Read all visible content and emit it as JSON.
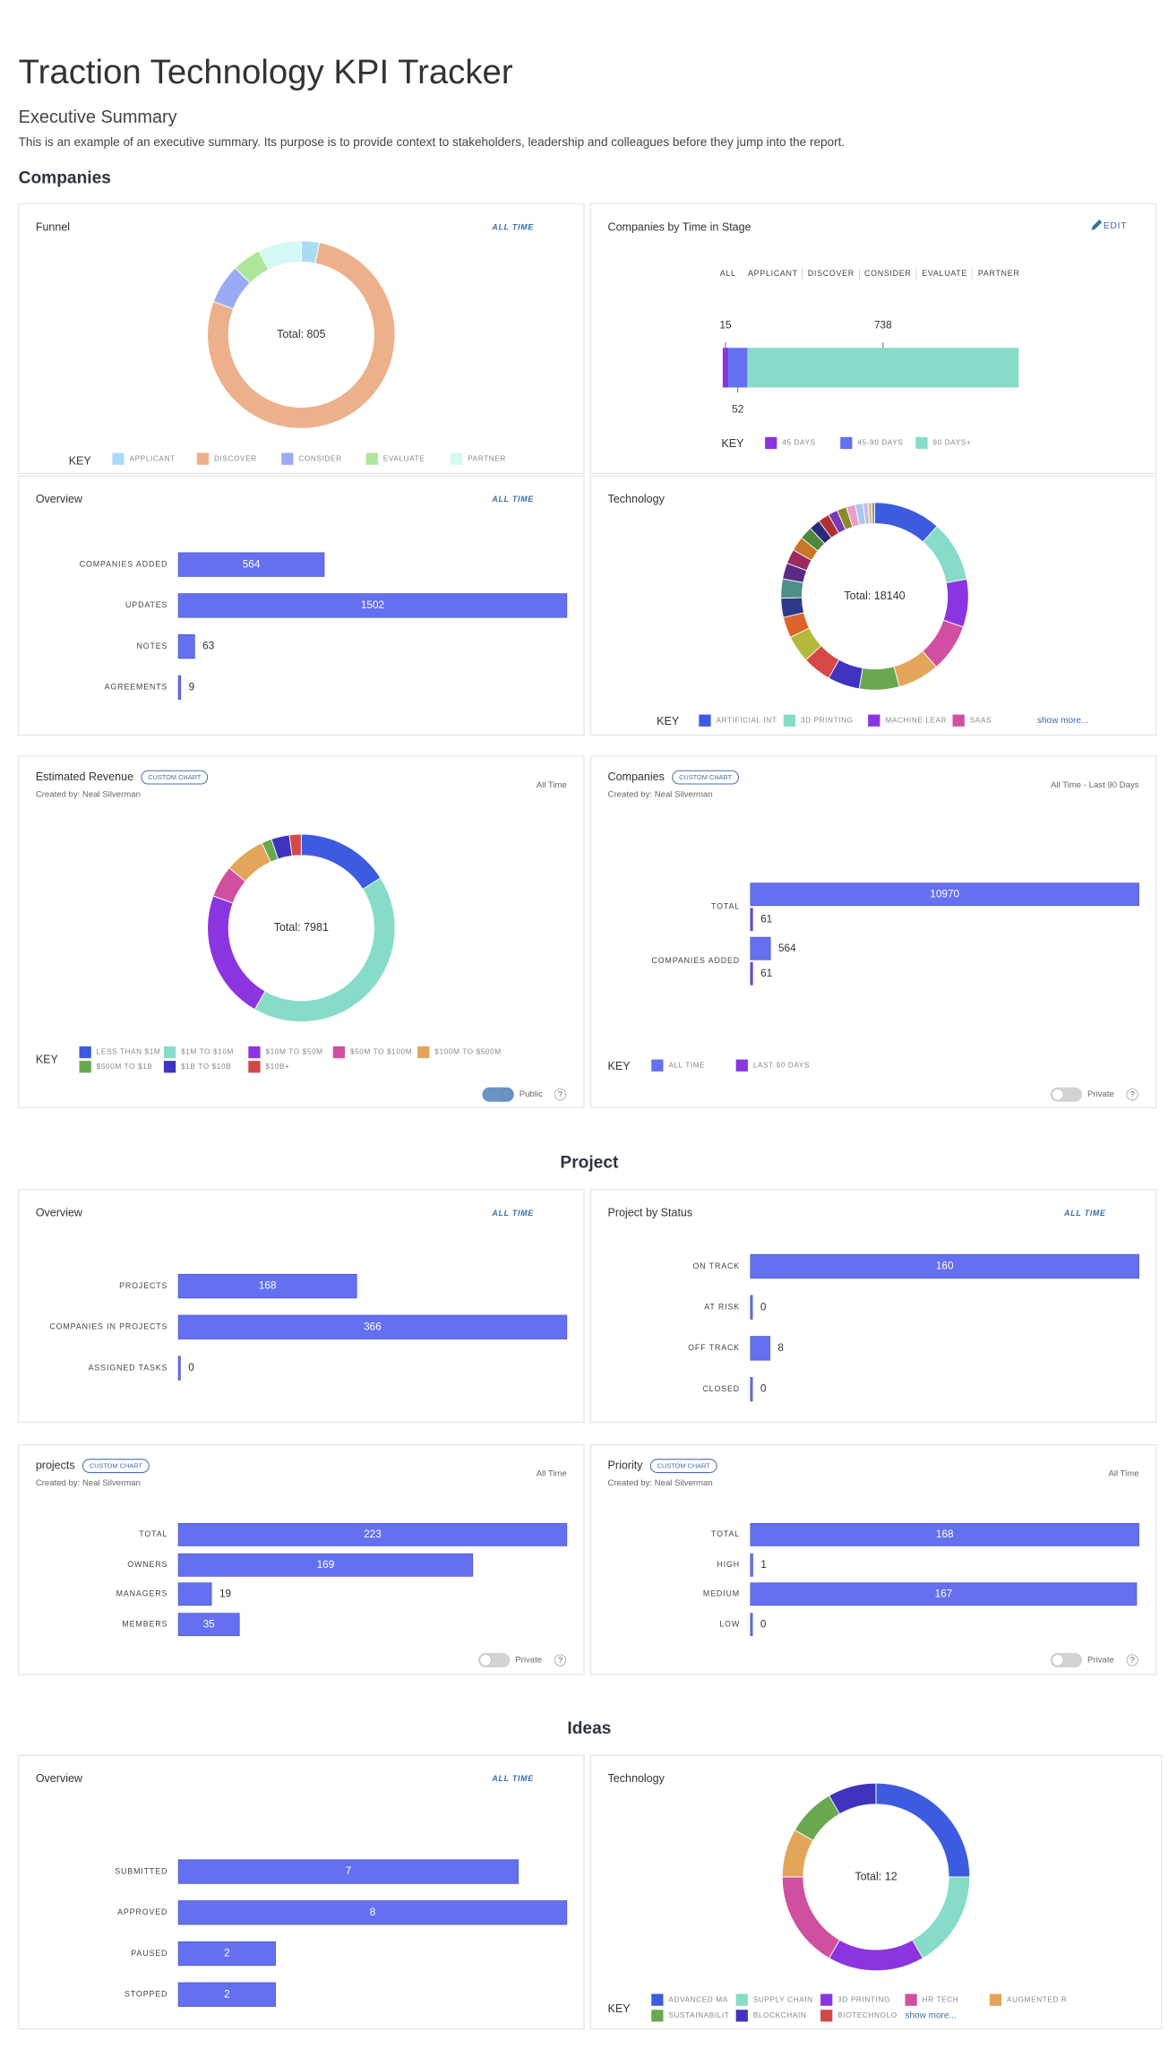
{
  "header": {
    "title": "Traction Technology KPI Tracker",
    "subtitle": "Executive Summary",
    "description": "This is an example of an executive summary. Its purpose is to provide context to stakeholders, leadership and colleagues before they jump into the report."
  },
  "sections": [
    {
      "title": "Companies",
      "panels": [
        {
          "title": "Funnel",
          "filter": "ALL TIME",
          "chart": {
            "type": "donut",
            "total_label": "Total: 805",
            "key_label": "KEY",
            "categories": [
              "APPLICANT",
              "DISCOVER",
              "CONSIDER",
              "EVALUATE",
              "PARTNER"
            ],
            "colors": [
              "#a8dcf5",
              "#ecb08a",
              "#9aabf5",
              "#aee59a",
              "#d4f8f3"
            ],
            "values": [
              25,
              625,
              55,
              40,
              60
            ]
          }
        },
        {
          "title": "Companies by Time in Stage",
          "action": "EDIT",
          "tabs": [
            "ALL",
            "APPLICANT",
            "DISCOVER",
            "CONSIDER",
            "EVALUATE",
            "PARTNER"
          ],
          "chart": {
            "type": "stacked_bar",
            "key_label": "KEY",
            "series": [
              {
                "name": "45 DAYS",
                "color": "#8b35e0",
                "value": 15
              },
              {
                "name": "45-90 DAYS",
                "color": "#6470f0",
                "value": 52
              },
              {
                "name": "90 DAYS+",
                "color": "#86dcc8",
                "value": 738
              }
            ]
          }
        },
        {
          "title": "Overview",
          "filter": "ALL TIME",
          "chart": {
            "type": "hbar",
            "categories": [
              "COMPANIES ADDED",
              "UPDATES",
              "NOTES",
              "AGREEMENTS"
            ],
            "series": [
              {
                "color": "#6470f0",
                "values": [
                  564,
                  1502,
                  63,
                  9
                ]
              }
            ]
          }
        },
        {
          "title": "Technology",
          "chart": {
            "type": "donut",
            "total_label": "Total: 18140",
            "key_label": "KEY",
            "show_more": "show more...",
            "categories": [
              "ARTIFICIAL INT",
              "3D PRINTING",
              "MACHINE LEAR",
              "SAAS",
              null,
              null,
              null,
              null,
              null,
              null,
              null,
              null,
              null,
              null,
              null,
              null,
              null,
              null,
              null,
              null,
              null,
              null,
              null,
              null,
              null
            ],
            "colors": [
              "#3d5be0",
              "#86dcc8",
              "#8b35e0",
              "#d14fa0",
              "#e3a55a",
              "#6aa84f",
              "#4033c0",
              "#d44848",
              "#b5b83a",
              "#e0642a",
              "#2d3a8c",
              "#4f8f8a",
              "#5b2a86",
              "#9c2a5e",
              "#c8762a",
              "#4a8a3a",
              "#2a2a7a",
              "#b03030",
              "#7a3ab0",
              "#8a8a2a",
              "#e8a0c8",
              "#a8c8f0",
              "#c8b8f0",
              "#d8c090",
              "#909090"
            ],
            "values": [
              2100,
              1900,
              1500,
              1500,
              1300,
              1250,
              1000,
              900,
              850,
              650,
              600,
              600,
              500,
              450,
              450,
              400,
              350,
              350,
              300,
              300,
              280,
              250,
              150,
              120,
              90
            ]
          }
        },
        {
          "title": "Estimated Revenue",
          "badge": "CUSTOM CHART",
          "created_by": "Created by: Neal Silverman",
          "filter": "All Time",
          "toggle": {
            "label": "Public",
            "on": true,
            "help": "?"
          },
          "chart": {
            "type": "donut",
            "total_label": "Total: 7981",
            "key_label": "KEY",
            "categories": [
              "LESS THAN $1M",
              "$1M TO $10M",
              "$10M TO $50M",
              "$50M TO $100M",
              "$100M TO $500M",
              "$500M TO $1B",
              "$1B TO $10B",
              "$10B+"
            ],
            "colors": [
              "#3d5be0",
              "#86dcc8",
              "#8b35e0",
              "#d14fa0",
              "#e3a55a",
              "#6aa84f",
              "#4033c0",
              "#d44848"
            ],
            "values": [
              1280,
              3370,
              1780,
              440,
              560,
              140,
              250,
              161
            ]
          }
        },
        {
          "title": "Companies",
          "badge": "CUSTOM CHART",
          "created_by": "Created by: Neal Silverman",
          "filter": "All Time - Last 90 Days",
          "toggle": {
            "label": "Private",
            "on": false,
            "help": "?"
          },
          "chart": {
            "type": "hbar",
            "key_label": "KEY",
            "categories": [
              "TOTAL",
              "COMPANIES ADDED"
            ],
            "series": [
              {
                "name": "ALL TIME",
                "color": "#6470f0",
                "values": [
                  10970,
                  564
                ]
              },
              {
                "name": "LAST 90 DAYS",
                "color": "#8b35e0",
                "values": [
                  61,
                  61
                ]
              }
            ]
          }
        }
      ]
    },
    {
      "title": "Project",
      "panels": [
        {
          "title": "Overview",
          "filter": "ALL TIME",
          "chart": {
            "type": "hbar",
            "categories": [
              "PROJECTS",
              "COMPANIES IN PROJECTS",
              "ASSIGNED TASKS"
            ],
            "series": [
              {
                "color": "#6470f0",
                "values": [
                  168,
                  366,
                  0
                ]
              }
            ]
          }
        },
        {
          "title": "Project by Status",
          "filter": "ALL TIME",
          "chart": {
            "type": "hbar",
            "categories": [
              "ON TRACK",
              "AT RISK",
              "OFF TRACK",
              "CLOSED"
            ],
            "series": [
              {
                "color": "#6470f0",
                "values": [
                  160,
                  0,
                  8,
                  0
                ]
              }
            ]
          }
        },
        {
          "title": "projects",
          "badge": "CUSTOM CHART",
          "created_by": "Created by: Neal Silverman",
          "filter": "All Time",
          "toggle": {
            "label": "Private",
            "on": false,
            "help": "?"
          },
          "chart": {
            "type": "hbar",
            "categories": [
              "TOTAL",
              "OWNERS",
              "MANAGERS",
              "MEMBERS"
            ],
            "series": [
              {
                "color": "#6470f0",
                "values": [
                  223,
                  169,
                  19,
                  35
                ]
              }
            ]
          }
        },
        {
          "title": "Priority",
          "badge": "CUSTOM CHART",
          "created_by": "Created by: Neal Silverman",
          "filter": "All Time",
          "toggle": {
            "label": "Private",
            "on": false,
            "help": "?"
          },
          "chart": {
            "type": "hbar",
            "categories": [
              "TOTAL",
              "HIGH",
              "MEDIUM",
              "LOW"
            ],
            "series": [
              {
                "color": "#6470f0",
                "values": [
                  168,
                  1,
                  167,
                  0
                ]
              }
            ]
          }
        }
      ]
    },
    {
      "title": "Ideas",
      "panels": [
        {
          "title": "Overview",
          "filter": "ALL TIME",
          "chart": {
            "type": "hbar",
            "categories": [
              "SUBMITTED",
              "APPROVED",
              "PAUSED",
              "STOPPED"
            ],
            "series": [
              {
                "color": "#6470f0",
                "values": [
                  7,
                  8,
                  2,
                  2
                ]
              }
            ]
          }
        },
        {
          "title": "Technology",
          "chart": {
            "type": "donut",
            "total_label": "Total: 12",
            "key_label": "KEY",
            "show_more": "show more...",
            "categories": [
              "ADVANCED MA",
              "SUPPLY CHAIN",
              "3D PRINTING",
              "HR TECH",
              "AUGMENTED R",
              "SUSTAINABILIT",
              "BLOCKCHAIN",
              "BIOTECHNOLO"
            ],
            "colors": [
              "#3d5be0",
              "#86dcc8",
              "#8b35e0",
              "#d14fa0",
              "#e3a55a",
              "#6aa84f",
              "#4033c0",
              "#d44848"
            ],
            "values": [
              3,
              2,
              2,
              2,
              1,
              1,
              1,
              0
            ]
          }
        }
      ]
    }
  ]
}
